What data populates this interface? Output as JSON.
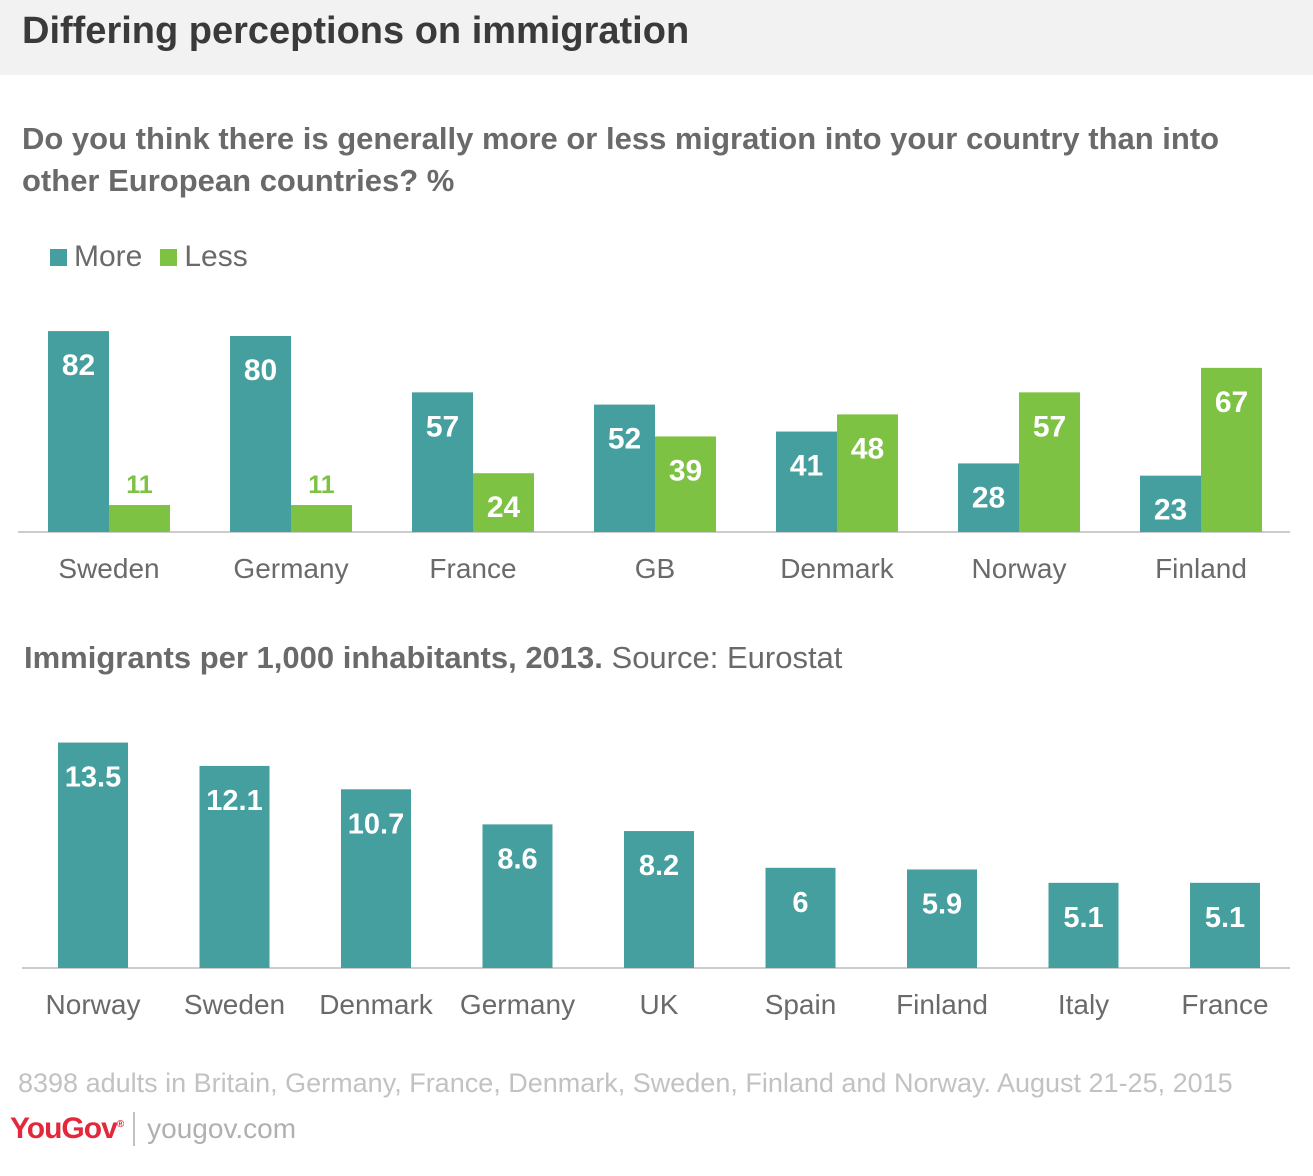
{
  "title": "Differing perceptions on immigration",
  "question": "Do you think there is generally more or less migration into your country than into other European countries? %",
  "colors": {
    "more": "#459f9f",
    "less": "#7dc242",
    "axis": "#cccccc",
    "label": "#6a6a6a"
  },
  "subtitle": {
    "bold": "Immigrants per 1,000 inhabitants, 2013.",
    "source": "Source: Eurostat"
  },
  "footnote": "8398 adults in Britain, Germany, France, Denmark, Sweden, Finland and Norway. August 21-25, 2015",
  "brand": {
    "logo": "YouGov",
    "url": "yougov.com"
  },
  "chart_data": [
    {
      "type": "bar",
      "categories": [
        "Sweden",
        "Germany",
        "France",
        "GB",
        "Denmark",
        "Norway",
        "Finland"
      ],
      "series": [
        {
          "name": "More",
          "values": [
            82,
            80,
            57,
            52,
            41,
            28,
            23
          ]
        },
        {
          "name": "Less",
          "values": [
            11,
            11,
            24,
            39,
            48,
            57,
            67
          ]
        }
      ],
      "ylim": [
        0,
        100
      ],
      "legend": "top-left"
    },
    {
      "type": "bar",
      "categories": [
        "Norway",
        "Sweden",
        "Denmark",
        "Germany",
        "UK",
        "Spain",
        "Finland",
        "Italy",
        "France"
      ],
      "values": [
        13.5,
        12.1,
        10.7,
        8.6,
        8.2,
        6,
        5.9,
        5.1,
        5.1
      ],
      "ylim": [
        0,
        16
      ]
    }
  ]
}
